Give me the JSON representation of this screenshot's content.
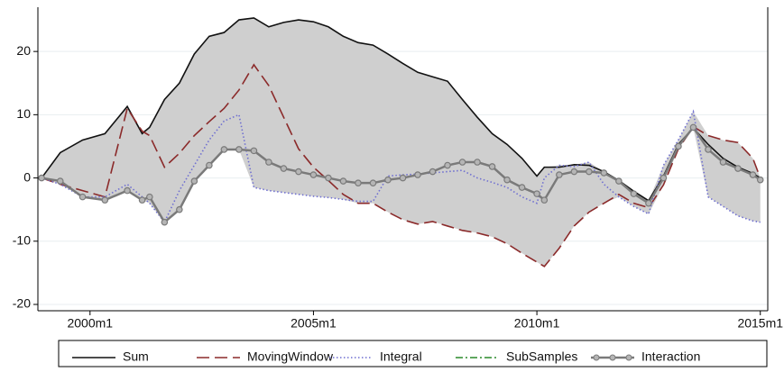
{
  "chart_data": {
    "type": "line",
    "x": [
      467,
      472,
      478,
      484,
      490,
      494,
      496,
      500,
      504,
      508,
      512,
      516,
      520,
      524,
      528,
      532,
      536,
      540,
      544,
      548,
      552,
      556,
      560,
      564,
      568,
      572,
      576,
      580,
      584,
      588,
      592,
      596,
      600,
      602,
      606,
      610,
      614,
      618,
      622,
      626,
      630,
      634,
      638,
      642,
      646,
      650,
      654,
      658,
      660
    ],
    "xlim": [
      466,
      662
    ],
    "xticks": [
      {
        "value": 480,
        "label": "2000m1"
      },
      {
        "value": 540,
        "label": "2005m1"
      },
      {
        "value": 600,
        "label": "2010m1"
      },
      {
        "value": 660,
        "label": "2015m1"
      }
    ],
    "ylim": [
      -21,
      27
    ],
    "yticks": [
      -20,
      -10,
      0,
      10,
      20
    ],
    "grid": true,
    "range_shading": true,
    "legend": "bottom",
    "series": [
      {
        "name": "Sum",
        "color": "#111111",
        "line_style": "solid",
        "values": [
          0,
          4,
          6,
          7,
          11.3,
          7,
          8,
          12.4,
          15,
          19.6,
          22.4,
          23,
          25,
          25.3,
          23.9,
          24.6,
          25,
          24.7,
          23.9,
          22.4,
          21.4,
          21,
          19.6,
          18.1,
          16.7,
          16,
          15.3,
          12.4,
          9.6,
          7,
          5.3,
          3.1,
          0.3,
          1.7,
          1.7,
          2.1,
          2,
          1,
          -0.4,
          -2.1,
          -3.6,
          0.3,
          5.3,
          7.9,
          5.3,
          3.1,
          1.7,
          0.7,
          0
        ]
      },
      {
        "name": "MovingWindow",
        "color": "#8b2a2a",
        "line_style": "dash",
        "values": [
          0,
          -1,
          -2,
          -3,
          11,
          7.4,
          6.7,
          1.7,
          3.9,
          6.7,
          8.9,
          11,
          13.9,
          17.9,
          14.6,
          9.6,
          4.6,
          1.7,
          -0.4,
          -2.6,
          -4,
          -4,
          -5.4,
          -6.6,
          -7.3,
          -6.9,
          -7.6,
          -8.3,
          -8.7,
          -9.3,
          -10.4,
          -11.9,
          -13.3,
          -14,
          -11.1,
          -7.6,
          -5.4,
          -4,
          -2.6,
          -4,
          -4.7,
          -1.1,
          4.6,
          8.1,
          6.7,
          6,
          5.6,
          3.1,
          0
        ]
      },
      {
        "name": "Integral",
        "color": "#6f6fd0",
        "line_style": "dot",
        "values": [
          0,
          -1,
          -3,
          -3,
          -1,
          -3,
          -4,
          -7,
          -2,
          2,
          6,
          9,
          10,
          -1.5,
          -2,
          -2.3,
          -2.6,
          -2.9,
          -3.1,
          -3.4,
          -3.7,
          -3.7,
          0.3,
          0.5,
          0.6,
          0.8,
          1,
          1.2,
          0,
          -0.7,
          -1.5,
          -3,
          -4,
          0,
          2,
          1.8,
          2.5,
          -1,
          -3,
          -4.5,
          -5.7,
          2,
          6,
          10.5,
          -3,
          -4.5,
          -6,
          -6.8,
          -7
        ]
      },
      {
        "name": "SubSamples",
        "color": "#2a8a2a",
        "line_style": "dashdot",
        "values": [
          0,
          -0.5,
          -3,
          -3.5,
          -2,
          -3.5,
          -3,
          -7,
          -5,
          -0.5,
          2,
          4.5,
          4.5,
          4.3,
          2.5,
          1.5,
          1,
          0.5,
          0,
          -0.5,
          -0.8,
          -0.8,
          -0.3,
          0,
          0.5,
          1,
          2,
          2.5,
          2.5,
          1.8,
          -0.3,
          -1.5,
          -2.5,
          -3.5,
          0.5,
          1,
          1,
          0.8,
          -0.5,
          -2.5,
          -4,
          0,
          5,
          8,
          4.5,
          2.5,
          1.5,
          0.5,
          -0.3
        ]
      },
      {
        "name": "Interaction",
        "color": "#7a7a7a",
        "line_style": "solid",
        "marker": "circle",
        "values": [
          0,
          -0.5,
          -3,
          -3.5,
          -2,
          -3.5,
          -3,
          -7,
          -5,
          -0.5,
          2,
          4.5,
          4.5,
          4.3,
          2.5,
          1.5,
          1,
          0.5,
          0,
          -0.5,
          -0.8,
          -0.8,
          -0.3,
          0,
          0.5,
          1,
          2,
          2.5,
          2.5,
          1.8,
          -0.3,
          -1.5,
          -2.5,
          -3.5,
          0.5,
          1,
          1,
          0.8,
          -0.5,
          -2.5,
          -4,
          0,
          5,
          8,
          4.5,
          2.5,
          1.5,
          0.5,
          -0.3
        ]
      }
    ]
  }
}
